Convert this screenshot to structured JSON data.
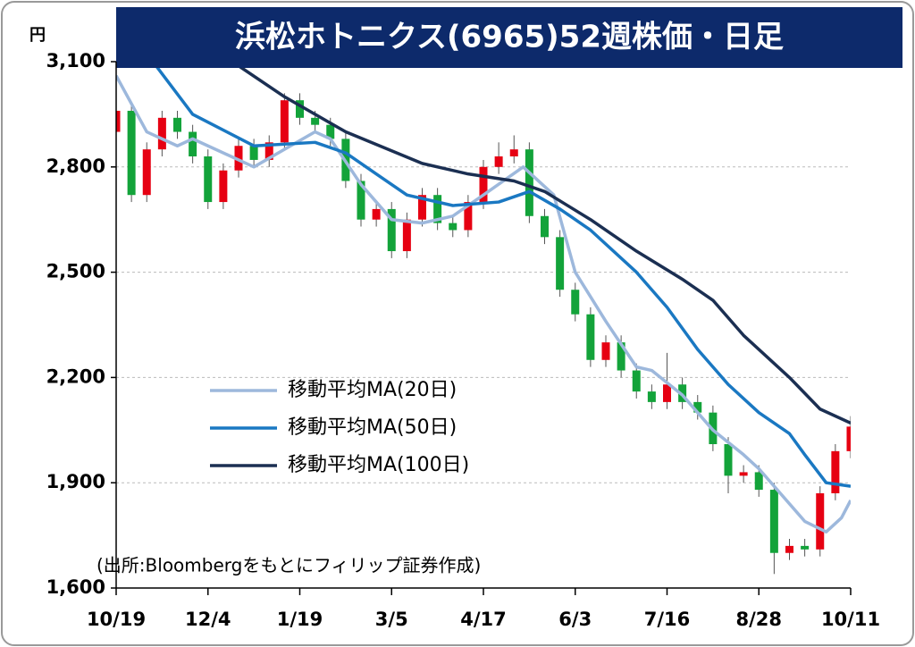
{
  "chart_data": {
    "type": "candlestick",
    "title": "浜松ホトニクス(6965)52週株価・日足",
    "y_unit": "円",
    "source": "(出所:Bloombergをもとにフィリップ証券作成)",
    "xlim": [
      0,
      240
    ],
    "xticks": [
      {
        "value": 0,
        "label": "10/19"
      },
      {
        "value": 30,
        "label": "12/4"
      },
      {
        "value": 60,
        "label": "1/19"
      },
      {
        "value": 90,
        "label": "3/5"
      },
      {
        "value": 120,
        "label": "4/17"
      },
      {
        "value": 150,
        "label": "6/3"
      },
      {
        "value": 180,
        "label": "7/16"
      },
      {
        "value": 210,
        "label": "8/28"
      },
      {
        "value": 240,
        "label": "10/11"
      }
    ],
    "ylim": [
      1600,
      3100
    ],
    "yticks": [
      {
        "value": 1600,
        "label": "1,600"
      },
      {
        "value": 1900,
        "label": "1,900"
      },
      {
        "value": 2200,
        "label": "2,200"
      },
      {
        "value": 2500,
        "label": "2,500"
      },
      {
        "value": 2800,
        "label": "2,800"
      },
      {
        "value": 3100,
        "label": "3,100"
      }
    ],
    "grid": true,
    "up_color": "#e60012",
    "down_color": "#13a33a",
    "candles": {
      "x": [
        0,
        5,
        10,
        15,
        20,
        25,
        30,
        35,
        40,
        45,
        50,
        55,
        60,
        65,
        70,
        75,
        80,
        85,
        90,
        95,
        100,
        105,
        110,
        115,
        120,
        125,
        130,
        135,
        140,
        145,
        150,
        155,
        160,
        165,
        170,
        175,
        180,
        185,
        190,
        195,
        200,
        205,
        210,
        215,
        220,
        225,
        230,
        235,
        240
      ],
      "open": [
        2900,
        2960,
        2720,
        2850,
        2940,
        2900,
        2830,
        2700,
        2790,
        2860,
        2820,
        2870,
        2990,
        2940,
        2920,
        2880,
        2760,
        2650,
        2680,
        2560,
        2650,
        2720,
        2640,
        2620,
        2700,
        2800,
        2830,
        2850,
        2660,
        2600,
        2450,
        2380,
        2250,
        2300,
        2220,
        2160,
        2130,
        2180,
        2130,
        2100,
        2010,
        1920,
        1930,
        1880,
        1700,
        1720,
        1710,
        1870,
        1990
      ],
      "high": [
        2980,
        2980,
        2870,
        2960,
        2960,
        2920,
        2850,
        2810,
        2880,
        2880,
        2890,
        3010,
        3010,
        2960,
        2940,
        2900,
        2780,
        2700,
        2700,
        2670,
        2740,
        2740,
        2660,
        2720,
        2820,
        2870,
        2890,
        2870,
        2680,
        2620,
        2470,
        2400,
        2320,
        2320,
        2240,
        2180,
        2270,
        2200,
        2150,
        2120,
        2030,
        1950,
        1950,
        1900,
        1740,
        1740,
        1890,
        2010,
        2090
      ],
      "low": [
        2880,
        2700,
        2700,
        2830,
        2880,
        2810,
        2680,
        2680,
        2770,
        2800,
        2800,
        2850,
        2920,
        2900,
        2860,
        2740,
        2630,
        2630,
        2540,
        2540,
        2630,
        2620,
        2600,
        2600,
        2680,
        2780,
        2810,
        2640,
        2580,
        2430,
        2360,
        2230,
        2230,
        2200,
        2140,
        2110,
        2110,
        2110,
        2080,
        1990,
        1870,
        1900,
        1860,
        1640,
        1680,
        1690,
        1690,
        1850,
        1970
      ],
      "close": [
        2960,
        2720,
        2850,
        2940,
        2900,
        2830,
        2700,
        2790,
        2860,
        2820,
        2870,
        2990,
        2940,
        2920,
        2880,
        2760,
        2650,
        2680,
        2560,
        2650,
        2720,
        2640,
        2620,
        2700,
        2800,
        2830,
        2850,
        2660,
        2600,
        2450,
        2380,
        2250,
        2300,
        2220,
        2160,
        2130,
        2180,
        2130,
        2100,
        2010,
        1920,
        1930,
        1880,
        1700,
        1720,
        1710,
        1870,
        1990,
        2060
      ]
    },
    "series": [
      {
        "name": "移動平均MA(20日)",
        "color": "#9db8dc",
        "x": [
          0,
          10,
          20,
          25,
          45,
          55,
          65,
          70,
          80,
          90,
          100,
          110,
          120,
          133,
          143,
          150,
          160,
          170,
          175,
          185,
          190,
          195,
          205,
          210,
          215,
          225,
          232,
          237,
          240
        ],
        "values": [
          3060,
          2900,
          2860,
          2880,
          2800,
          2850,
          2900,
          2880,
          2750,
          2650,
          2640,
          2660,
          2720,
          2800,
          2720,
          2500,
          2360,
          2230,
          2220,
          2150,
          2100,
          2050,
          1980,
          1940,
          1890,
          1790,
          1760,
          1800,
          1850
        ]
      },
      {
        "name": "移動平均MA(50日)",
        "color": "#1a78c2",
        "x": [
          12,
          25,
          45,
          65,
          75,
          85,
          95,
          110,
          125,
          135,
          145,
          155,
          170,
          180,
          190,
          200,
          210,
          220,
          225,
          232,
          240
        ],
        "values": [
          3100,
          2950,
          2860,
          2870,
          2840,
          2780,
          2720,
          2690,
          2700,
          2730,
          2680,
          2620,
          2500,
          2400,
          2280,
          2180,
          2100,
          2040,
          1980,
          1900,
          1890
        ]
      },
      {
        "name": "移動平均MA(100日)",
        "color": "#1b2f52",
        "x": [
          38,
          55,
          75,
          100,
          115,
          130,
          140,
          155,
          170,
          185,
          195,
          205,
          220,
          230,
          240
        ],
        "values": [
          3100,
          3000,
          2900,
          2810,
          2780,
          2760,
          2730,
          2650,
          2560,
          2480,
          2420,
          2320,
          2200,
          2110,
          2070
        ]
      }
    ]
  }
}
